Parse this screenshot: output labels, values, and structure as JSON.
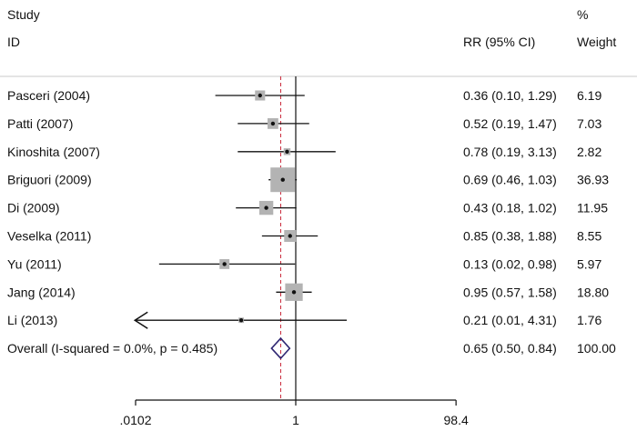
{
  "chart_data": {
    "type": "forest",
    "headers": {
      "study_line1": "Study",
      "study_line2": "ID",
      "effect": "RR (95% CI)",
      "weight_line1": "%",
      "weight_line2": "Weight"
    },
    "x_scale": "log",
    "x_ticks": [
      {
        "value": 0.0102,
        "label": ".0102"
      },
      {
        "value": 1,
        "label": "1"
      },
      {
        "value": 98.4,
        "label": "98.4"
      }
    ],
    "null_line": 1,
    "overall_line": 0.65,
    "studies": [
      {
        "label": "Pasceri (2004)",
        "rr": 0.36,
        "lower": 0.1,
        "upper": 1.29,
        "ci_text": "0.36 (0.10, 1.29)",
        "weight": 6.19,
        "weight_text": "6.19",
        "arrow_left": false
      },
      {
        "label": "Patti (2007)",
        "rr": 0.52,
        "lower": 0.19,
        "upper": 1.47,
        "ci_text": "0.52 (0.19, 1.47)",
        "weight": 7.03,
        "weight_text": "7.03",
        "arrow_left": false
      },
      {
        "label": "Kinoshita (2007)",
        "rr": 0.78,
        "lower": 0.19,
        "upper": 3.13,
        "ci_text": "0.78 (0.19, 3.13)",
        "weight": 2.82,
        "weight_text": "2.82",
        "arrow_left": false
      },
      {
        "label": "Briguori (2009)",
        "rr": 0.69,
        "lower": 0.46,
        "upper": 1.03,
        "ci_text": "0.69 (0.46, 1.03)",
        "weight": 36.93,
        "weight_text": "36.93",
        "arrow_left": false
      },
      {
        "label": "Di (2009)",
        "rr": 0.43,
        "lower": 0.18,
        "upper": 1.02,
        "ci_text": "0.43 (0.18, 1.02)",
        "weight": 11.95,
        "weight_text": "11.95",
        "arrow_left": false
      },
      {
        "label": "Veselka (2011)",
        "rr": 0.85,
        "lower": 0.38,
        "upper": 1.88,
        "ci_text": "0.85 (0.38, 1.88)",
        "weight": 8.55,
        "weight_text": "8.55",
        "arrow_left": false
      },
      {
        "label": "Yu (2011)",
        "rr": 0.13,
        "lower": 0.02,
        "upper": 0.98,
        "ci_text": "0.13 (0.02, 0.98)",
        "weight": 5.97,
        "weight_text": "5.97",
        "arrow_left": false
      },
      {
        "label": "Jang (2014)",
        "rr": 0.95,
        "lower": 0.57,
        "upper": 1.58,
        "ci_text": "0.95 (0.57, 1.58)",
        "weight": 18.8,
        "weight_text": "18.80",
        "arrow_left": false
      },
      {
        "label": "Li (2013)",
        "rr": 0.21,
        "lower": 0.01,
        "upper": 4.31,
        "ci_text": "0.21 (0.01, 4.31)",
        "weight": 1.76,
        "weight_text": "1.76",
        "arrow_left": true
      }
    ],
    "overall": {
      "label": "Overall  (I-squared = 0.0%, p = 0.485)",
      "rr": 0.65,
      "lower": 0.5,
      "upper": 0.84,
      "ci_text": "0.65 (0.50, 0.84)",
      "weight_text": "100.00"
    },
    "colors": {
      "box": "#b3b3b3",
      "diamond": "#2e2672",
      "overall_line": "#cc3344",
      "text": "#111111"
    }
  }
}
